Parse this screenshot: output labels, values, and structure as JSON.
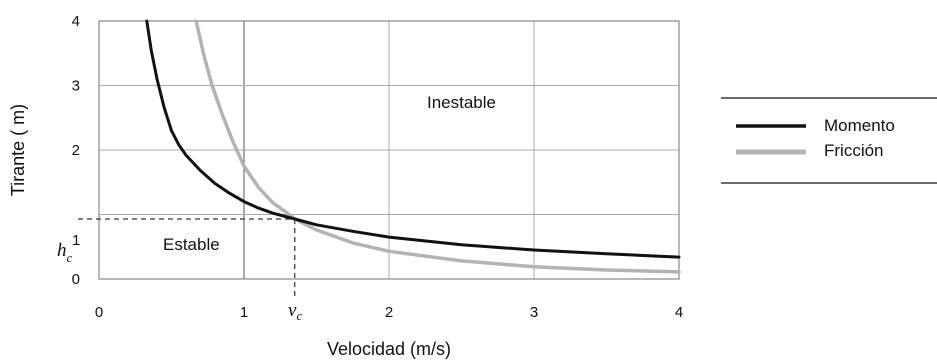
{
  "chart_data": {
    "type": "line",
    "title": "",
    "xlabel": "Velocidad (m/s)",
    "ylabel": "Tirante ( m)",
    "xlim": [
      0,
      4
    ],
    "ylim": [
      0,
      4
    ],
    "x_ticks": [
      "0",
      "1",
      "2",
      "3",
      "4"
    ],
    "y_ticks": [
      "0",
      "1",
      "2",
      "3",
      "4"
    ],
    "grid": true,
    "legend_position": "right",
    "series": [
      {
        "name": "Momento",
        "color": "#111111",
        "points": [
          [
            0.33,
            4.0
          ],
          [
            0.36,
            3.55
          ],
          [
            0.4,
            3.1
          ],
          [
            0.45,
            2.65
          ],
          [
            0.5,
            2.3
          ],
          [
            0.55,
            2.08
          ],
          [
            0.6,
            1.92
          ],
          [
            0.7,
            1.68
          ],
          [
            0.8,
            1.48
          ],
          [
            0.9,
            1.33
          ],
          [
            1.0,
            1.2
          ],
          [
            1.1,
            1.1
          ],
          [
            1.2,
            1.02
          ],
          [
            1.35,
            0.93
          ],
          [
            1.5,
            0.84
          ],
          [
            1.75,
            0.74
          ],
          [
            2.0,
            0.65
          ],
          [
            2.5,
            0.53
          ],
          [
            3.0,
            0.45
          ],
          [
            3.5,
            0.39
          ],
          [
            4.0,
            0.34
          ]
        ]
      },
      {
        "name": "Fricción",
        "color": "#b3b3b3",
        "points": [
          [
            0.67,
            4.0
          ],
          [
            0.72,
            3.5
          ],
          [
            0.78,
            3.0
          ],
          [
            0.85,
            2.55
          ],
          [
            0.92,
            2.15
          ],
          [
            1.0,
            1.75
          ],
          [
            1.1,
            1.42
          ],
          [
            1.2,
            1.18
          ],
          [
            1.3,
            1.02
          ],
          [
            1.35,
            0.93
          ],
          [
            1.5,
            0.76
          ],
          [
            1.75,
            0.56
          ],
          [
            2.0,
            0.43
          ],
          [
            2.5,
            0.28
          ],
          [
            3.0,
            0.19
          ],
          [
            3.5,
            0.14
          ],
          [
            4.0,
            0.11
          ]
        ]
      }
    ],
    "annotations": {
      "unstable": "Inestable",
      "stable": "Estable",
      "h_symbol": "h",
      "h_sub": "c",
      "h_value_label": "1",
      "v_symbol": "v",
      "v_sub": "c",
      "critical_point": [
        1.35,
        0.93
      ]
    }
  }
}
